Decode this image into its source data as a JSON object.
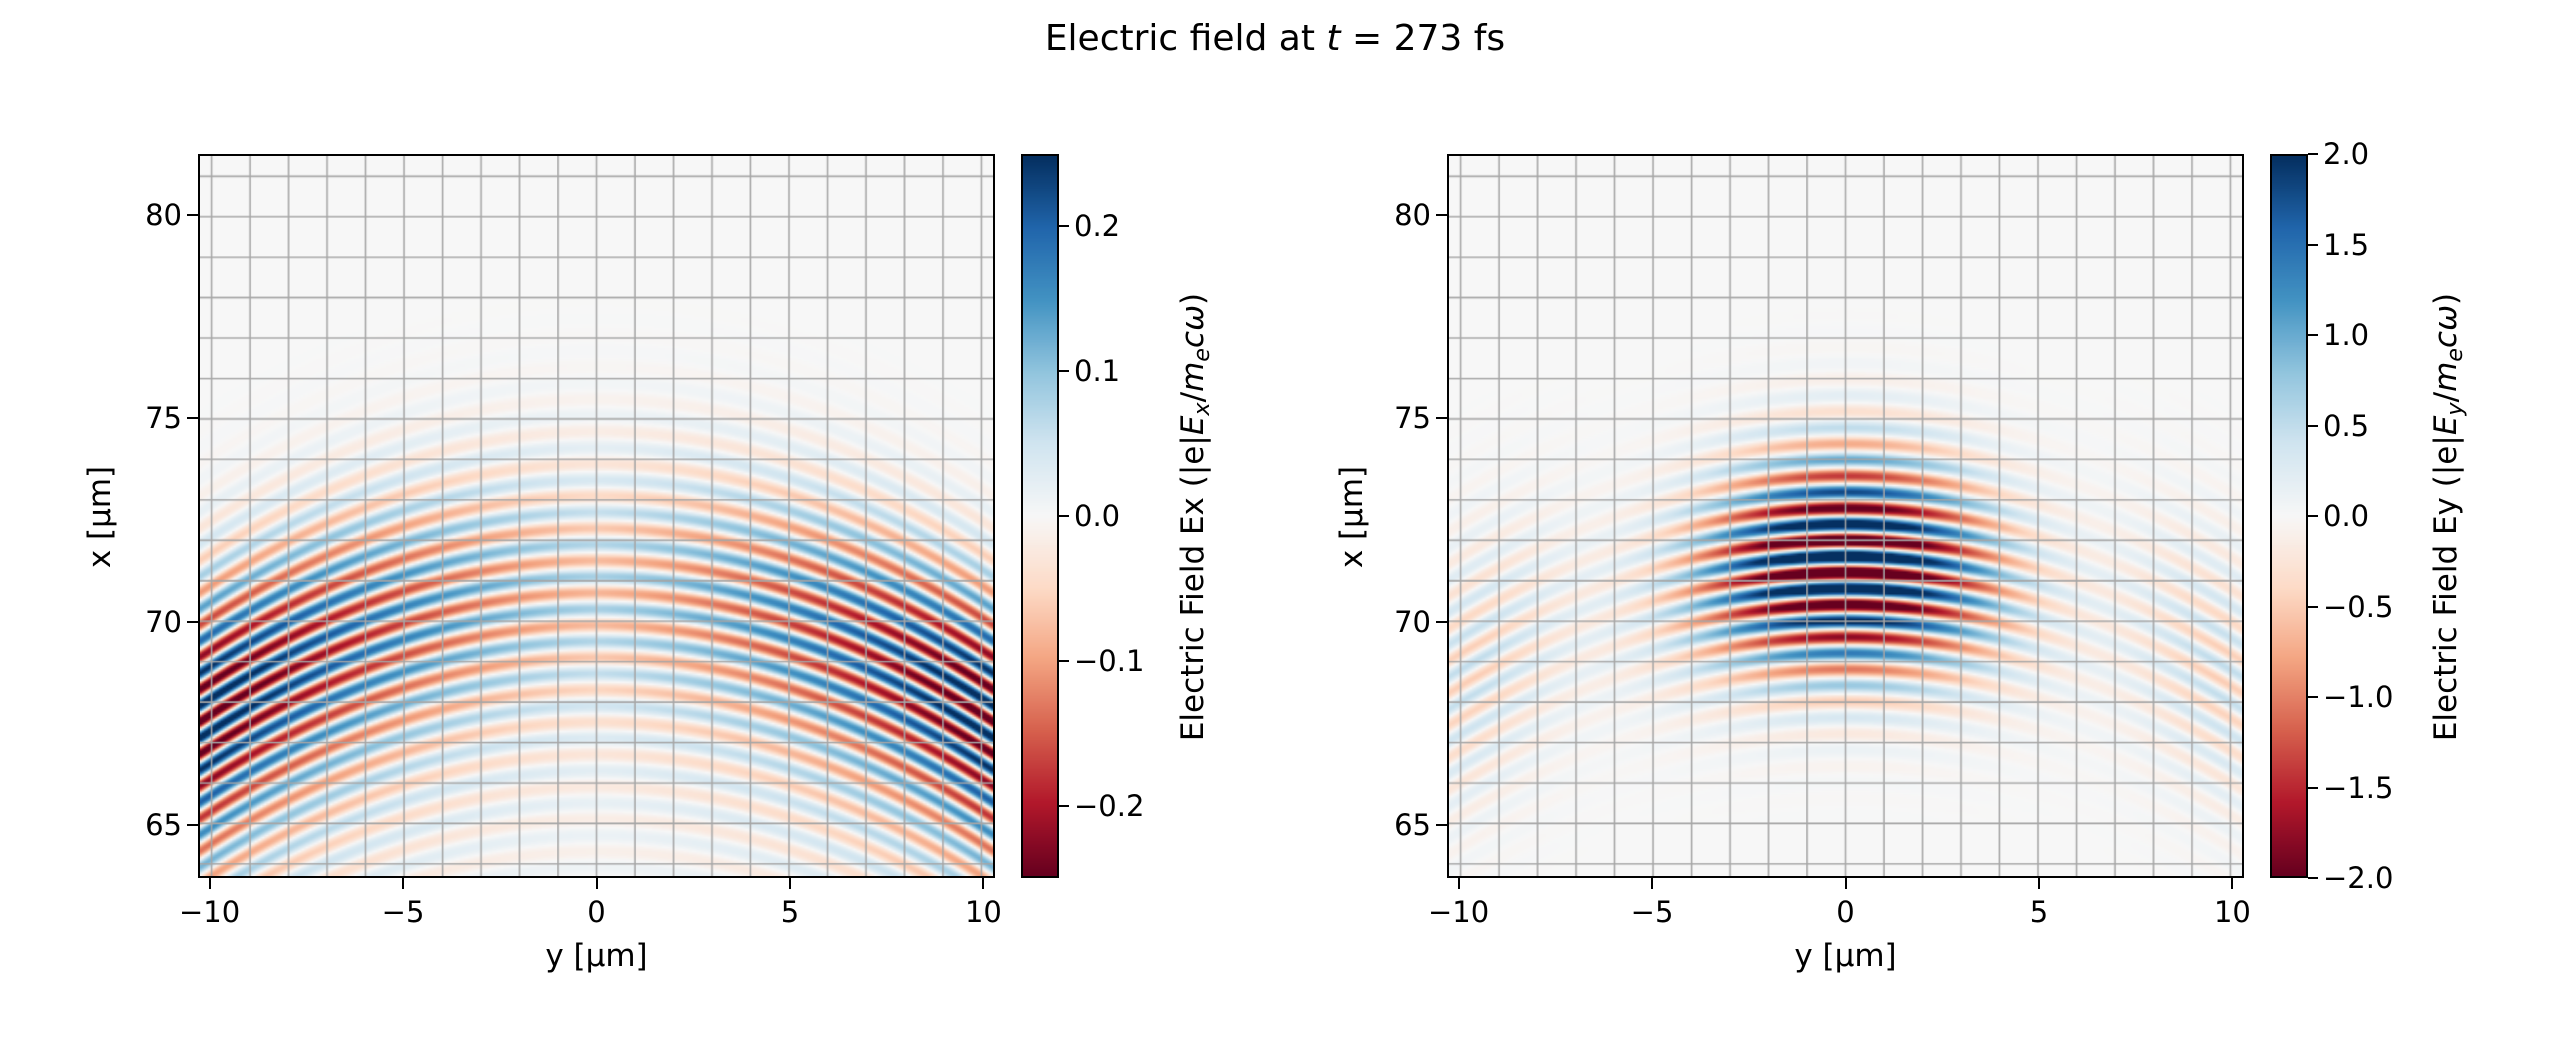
{
  "figure": {
    "title_parts": [
      {
        "t": "Electric field at ",
        "s": "n"
      },
      {
        "t": "t",
        "s": "i"
      },
      {
        "t": " = 273 fs",
        "s": "n"
      }
    ],
    "background": "#ffffff",
    "text_color": "#000000",
    "grid_color": "#a6a6a6",
    "spine_color": "#000000"
  },
  "colormap": {
    "name": "RdBu",
    "stops": [
      "#67001f",
      "#b2182b",
      "#d6604d",
      "#f4a582",
      "#fddbc7",
      "#f7f7f7",
      "#d1e5f0",
      "#92c5de",
      "#4393c3",
      "#2166ac",
      "#053061"
    ]
  },
  "chart_data": [
    {
      "type": "heatmap",
      "id": "ex",
      "xlabel": "y [μm]",
      "ylabel": "x [μm]",
      "xlim": [
        -10.3,
        10.3
      ],
      "ylim": [
        63.7,
        81.5
      ],
      "grid_step_um": 1,
      "x_ticks": [
        {
          "v": -10,
          "label": "−10"
        },
        {
          "v": -5,
          "label": "−5"
        },
        {
          "v": 0,
          "label": "0"
        },
        {
          "v": 5,
          "label": "5"
        },
        {
          "v": 10,
          "label": "10"
        }
      ],
      "y_ticks": [
        {
          "v": 80,
          "label": "80"
        },
        {
          "v": 75,
          "label": "75"
        },
        {
          "v": 70,
          "label": "70"
        },
        {
          "v": 65,
          "label": "65"
        }
      ],
      "clim": [
        -0.25,
        0.25
      ],
      "colorbar_ticks": [
        {
          "v": 0.2,
          "label": "0.2"
        },
        {
          "v": 0.1,
          "label": "0.1"
        },
        {
          "v": 0.0,
          "label": "0.0"
        },
        {
          "v": -0.1,
          "label": "−0.1"
        },
        {
          "v": -0.2,
          "label": "−0.2"
        }
      ],
      "colorbar_label_parts": [
        {
          "t": "Electric Field Ex (|e|",
          "s": "n"
        },
        {
          "t": "E",
          "s": "i"
        },
        {
          "t": "x",
          "s": "is"
        },
        {
          "t": "/",
          "s": "n"
        },
        {
          "t": "m",
          "s": "i"
        },
        {
          "t": "e",
          "s": "is"
        },
        {
          "t": "c",
          "s": "i"
        },
        {
          "t": "ω",
          "s": "i"
        },
        {
          "t": ")",
          "s": "n"
        }
      ],
      "field_model": {
        "kind": "longitudinal",
        "center_x_um": 70.9,
        "wavelength_um": 0.8,
        "wavefront_curvature": 0.03,
        "sigma_x_um": 2.2,
        "tail_amp": 0.22,
        "tail_offset_um": 4.3,
        "tail_sigma_um": 2.6,
        "peak_amp": 0.27,
        "edge_base": 0.3,
        "edge_gain": 0.7,
        "y_ref_um": 10
      }
    },
    {
      "type": "heatmap",
      "id": "ey",
      "xlabel": "y [μm]",
      "ylabel": "x [μm]",
      "xlim": [
        -10.3,
        10.3
      ],
      "ylim": [
        63.7,
        81.5
      ],
      "grid_step_um": 1,
      "x_ticks": [
        {
          "v": -10,
          "label": "−10"
        },
        {
          "v": -5,
          "label": "−5"
        },
        {
          "v": 0,
          "label": "0"
        },
        {
          "v": 5,
          "label": "5"
        },
        {
          "v": 10,
          "label": "10"
        }
      ],
      "y_ticks": [
        {
          "v": 80,
          "label": "80"
        },
        {
          "v": 75,
          "label": "75"
        },
        {
          "v": 70,
          "label": "70"
        },
        {
          "v": 65,
          "label": "65"
        }
      ],
      "clim": [
        -2.0,
        2.0
      ],
      "colorbar_ticks": [
        {
          "v": 2.0,
          "label": "2.0"
        },
        {
          "v": 1.5,
          "label": "1.5"
        },
        {
          "v": 1.0,
          "label": "1.0"
        },
        {
          "v": 0.5,
          "label": "0.5"
        },
        {
          "v": 0.0,
          "label": "0.0"
        },
        {
          "v": -0.5,
          "label": "−0.5"
        },
        {
          "v": -1.0,
          "label": "−1.0"
        },
        {
          "v": -1.5,
          "label": "−1.5"
        },
        {
          "v": -2.0,
          "label": "−2.0"
        }
      ],
      "colorbar_label_parts": [
        {
          "t": "Electric Field Ey (|e|",
          "s": "n"
        },
        {
          "t": "E",
          "s": "i"
        },
        {
          "t": "y",
          "s": "is"
        },
        {
          "t": "/",
          "s": "n"
        },
        {
          "t": "m",
          "s": "i"
        },
        {
          "t": "e",
          "s": "is"
        },
        {
          "t": "c",
          "s": "i"
        },
        {
          "t": "ω",
          "s": "i"
        },
        {
          "t": ")",
          "s": "n"
        }
      ],
      "field_model": {
        "kind": "transverse",
        "center_x_um": 71.4,
        "wavelength_um": 0.8,
        "wavefront_curvature": 0.028,
        "sigma_x_um": 1.8,
        "sigma_y_um": 2.6,
        "peak_amp": 3.0,
        "lobe_amp": 0.5,
        "lobe_center_um": 9.8,
        "lobe_sigma_um": 1.8,
        "lobe_sigma_x_um": 2.2
      }
    }
  ]
}
